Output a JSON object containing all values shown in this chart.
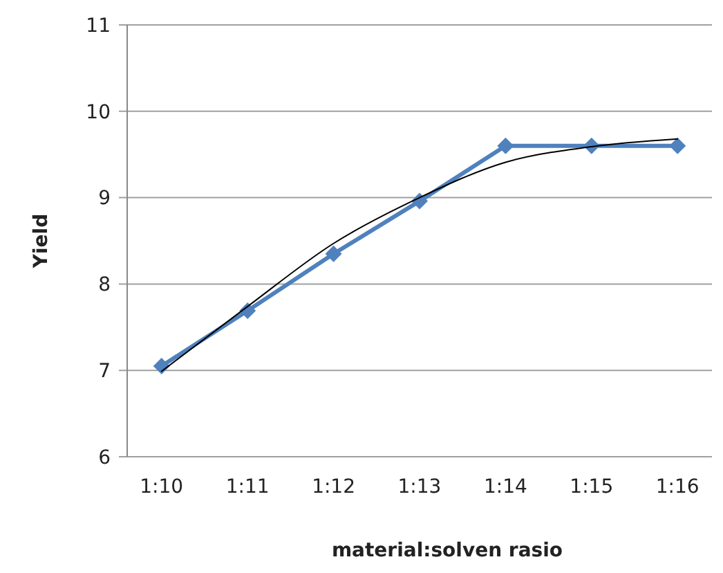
{
  "chart_data": {
    "type": "line",
    "xlabel": "material:solven rasio",
    "ylabel": "Yield",
    "categories": [
      "1:10",
      "1:11",
      "1:12",
      "1:13",
      "1:14",
      "1:15",
      "1:16"
    ],
    "series": [
      {
        "color": "#4f81bd",
        "values": [
          7.05,
          7.69,
          8.35,
          8.96,
          9.6,
          9.6,
          9.6
        ],
        "marker": "diamond"
      },
      {
        "type": "line",
        "color": "#000000",
        "values": [
          6.99,
          7.74,
          8.47,
          9.0,
          9.41,
          9.59,
          9.68
        ],
        "marker": "none"
      }
    ],
    "ylim": [
      6,
      11
    ],
    "yticks": [
      6,
      7,
      8,
      9,
      10,
      11
    ],
    "grid": "y"
  }
}
